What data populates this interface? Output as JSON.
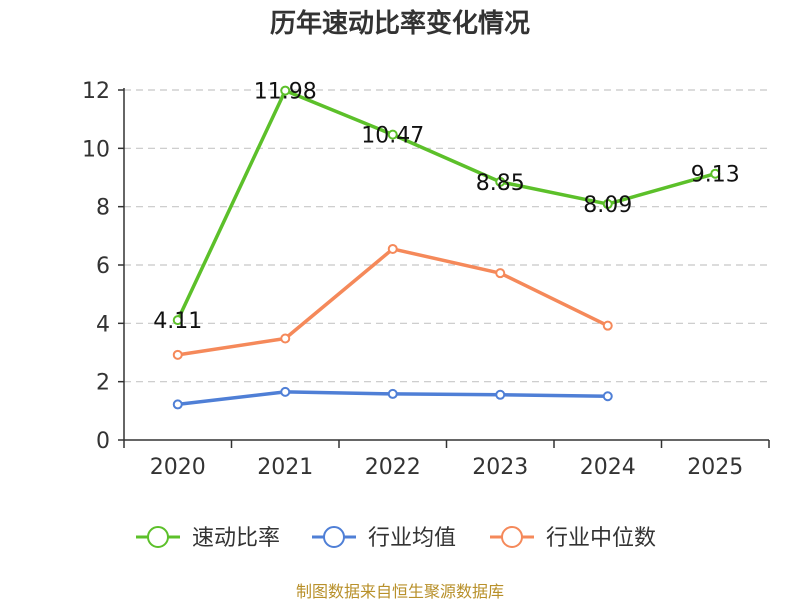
{
  "chart_data": {
    "type": "line",
    "title": "历年速动比率变化情况",
    "categories": [
      "2020",
      "2021",
      "2022",
      "2023",
      "2024",
      "2025"
    ],
    "ylim": [
      0,
      12
    ],
    "yticks": [
      0,
      2,
      4,
      6,
      8,
      10,
      12
    ],
    "grid": true,
    "legend_position": "bottom",
    "series": [
      {
        "name": "速动比率",
        "color": "#5cc02a",
        "show_labels": true,
        "values": [
          4.11,
          11.98,
          10.47,
          8.85,
          8.09,
          9.13
        ],
        "labels": [
          "4.11",
          "11.98",
          "10.47",
          "8.85",
          "8.09",
          "9.13"
        ]
      },
      {
        "name": "行业均值",
        "color": "#4f7fd6",
        "show_labels": false,
        "values": [
          1.22,
          1.65,
          1.58,
          1.55,
          1.5,
          null
        ]
      },
      {
        "name": "行业中位数",
        "color": "#f5895a",
        "show_labels": false,
        "values": [
          2.92,
          3.48,
          6.55,
          5.72,
          3.92,
          null
        ]
      }
    ]
  },
  "source": "制图数据来自恒生聚源数据库"
}
